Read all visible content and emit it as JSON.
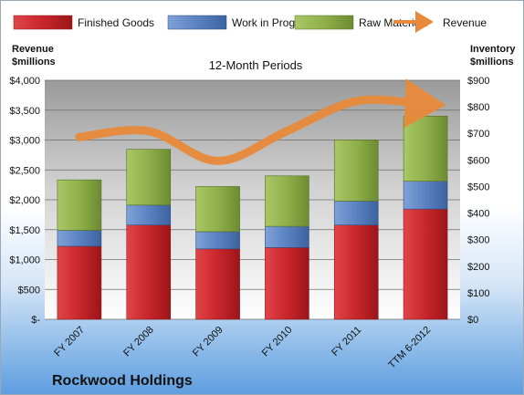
{
  "chart_data": {
    "type": "bar",
    "subtitle": "12-Month Periods",
    "company": "Rockwood Holdings",
    "categories": [
      "FY 2007",
      "FY 2008",
      "FY 2009",
      "FY 2010",
      "FY 2011",
      "TTM 6-2012"
    ],
    "series": [
      {
        "name": "Finished Goods",
        "axis": "right",
        "stacked": true,
        "color": "#c8262b",
        "values": [
          275,
          355,
          265,
          270,
          355,
          415
        ]
      },
      {
        "name": "Work in Progress",
        "axis": "right",
        "stacked": true,
        "color": "#5a82c2",
        "values": [
          60,
          75,
          65,
          80,
          90,
          105
        ]
      },
      {
        "name": "Raw Materials",
        "axis": "right",
        "stacked": true,
        "color": "#8fb04a",
        "values": [
          190,
          210,
          170,
          190,
          230,
          245
        ]
      },
      {
        "name": "Revenue",
        "axis": "left",
        "type": "line",
        "color": "#e88a3a",
        "values": [
          3050,
          3150,
          2650,
          3150,
          3650,
          3600
        ]
      }
    ],
    "left_axis": {
      "title_line1": "Revenue",
      "title_line2": "$millions",
      "min": 0,
      "max": 4000,
      "step": 500,
      "tick_labels": [
        "$-",
        "$500",
        "$1,000",
        "$1,500",
        "$2,000",
        "$2,500",
        "$3,000",
        "$3,500",
        "$4,000"
      ]
    },
    "right_axis": {
      "title_line1": "Inventory",
      "title_line2": "$millions",
      "min": 0,
      "max": 900,
      "step": 100,
      "tick_labels": [
        "$0",
        "$100",
        "$200",
        "$300",
        "$400",
        "$500",
        "$600",
        "$700",
        "$800",
        "$900"
      ]
    },
    "grid": true,
    "legend": "top"
  }
}
